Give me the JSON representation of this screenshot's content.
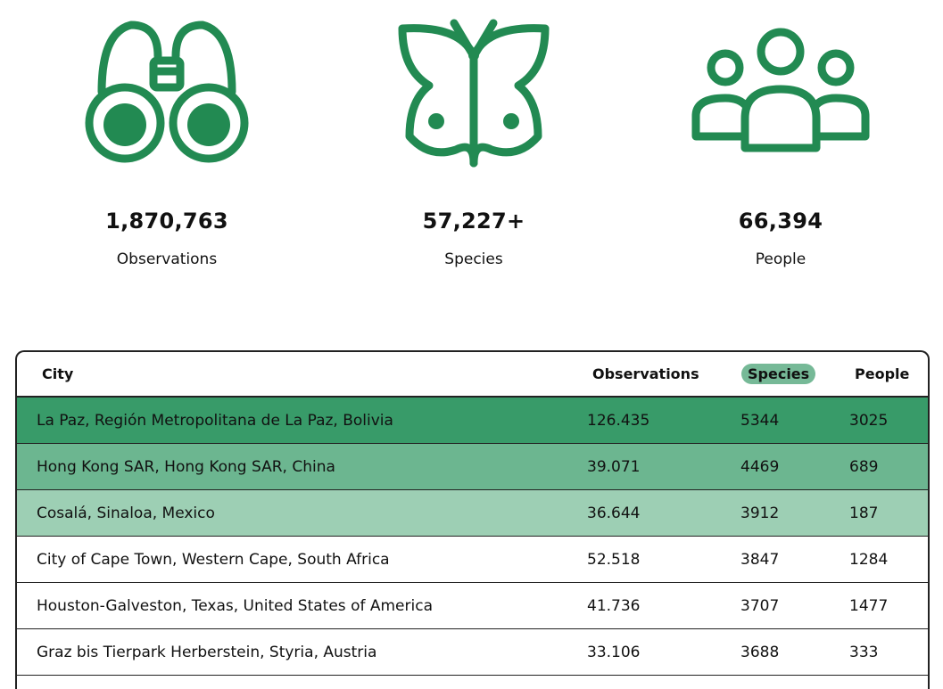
{
  "stats": [
    {
      "icon": "binoculars-icon",
      "value": "1,870,763",
      "label": "Observations"
    },
    {
      "icon": "butterfly-icon",
      "value": "57,227+",
      "label": "Species"
    },
    {
      "icon": "people-icon",
      "value": "66,394",
      "label": "People"
    }
  ],
  "table": {
    "headers": {
      "city": "City",
      "observations": "Observations",
      "species": "Species",
      "people": "People"
    },
    "sorted_by": "Species",
    "rows": [
      {
        "city": "La Paz, Región Metropolitana de La Paz, Bolivia",
        "observations": "126.435",
        "species": "5344",
        "people": "3025",
        "color": "#389b69"
      },
      {
        "city": "Hong Kong SAR, Hong Kong SAR, China",
        "observations": "39.071",
        "species": "4469",
        "people": "689",
        "color": "#6cb690"
      },
      {
        "city": "Cosalá, Sinaloa, Mexico",
        "observations": "36.644",
        "species": "3912",
        "people": "187",
        "color": "#9dcfb4"
      },
      {
        "city": "City of Cape Town, Western Cape, South Africa",
        "observations": "52.518",
        "species": "3847",
        "people": "1284",
        "color": "#ffffff"
      },
      {
        "city": "Houston-Galveston, Texas, United States of America",
        "observations": "41.736",
        "species": "3707",
        "people": "1477",
        "color": "#ffffff"
      },
      {
        "city": "Graz bis Tierpark Herberstein, Styria, Austria",
        "observations": "33.106",
        "species": "3688",
        "people": "333",
        "color": "#ffffff"
      }
    ]
  },
  "colors": {
    "icon_green": "#228a52",
    "accent_pill": "#76b997"
  }
}
